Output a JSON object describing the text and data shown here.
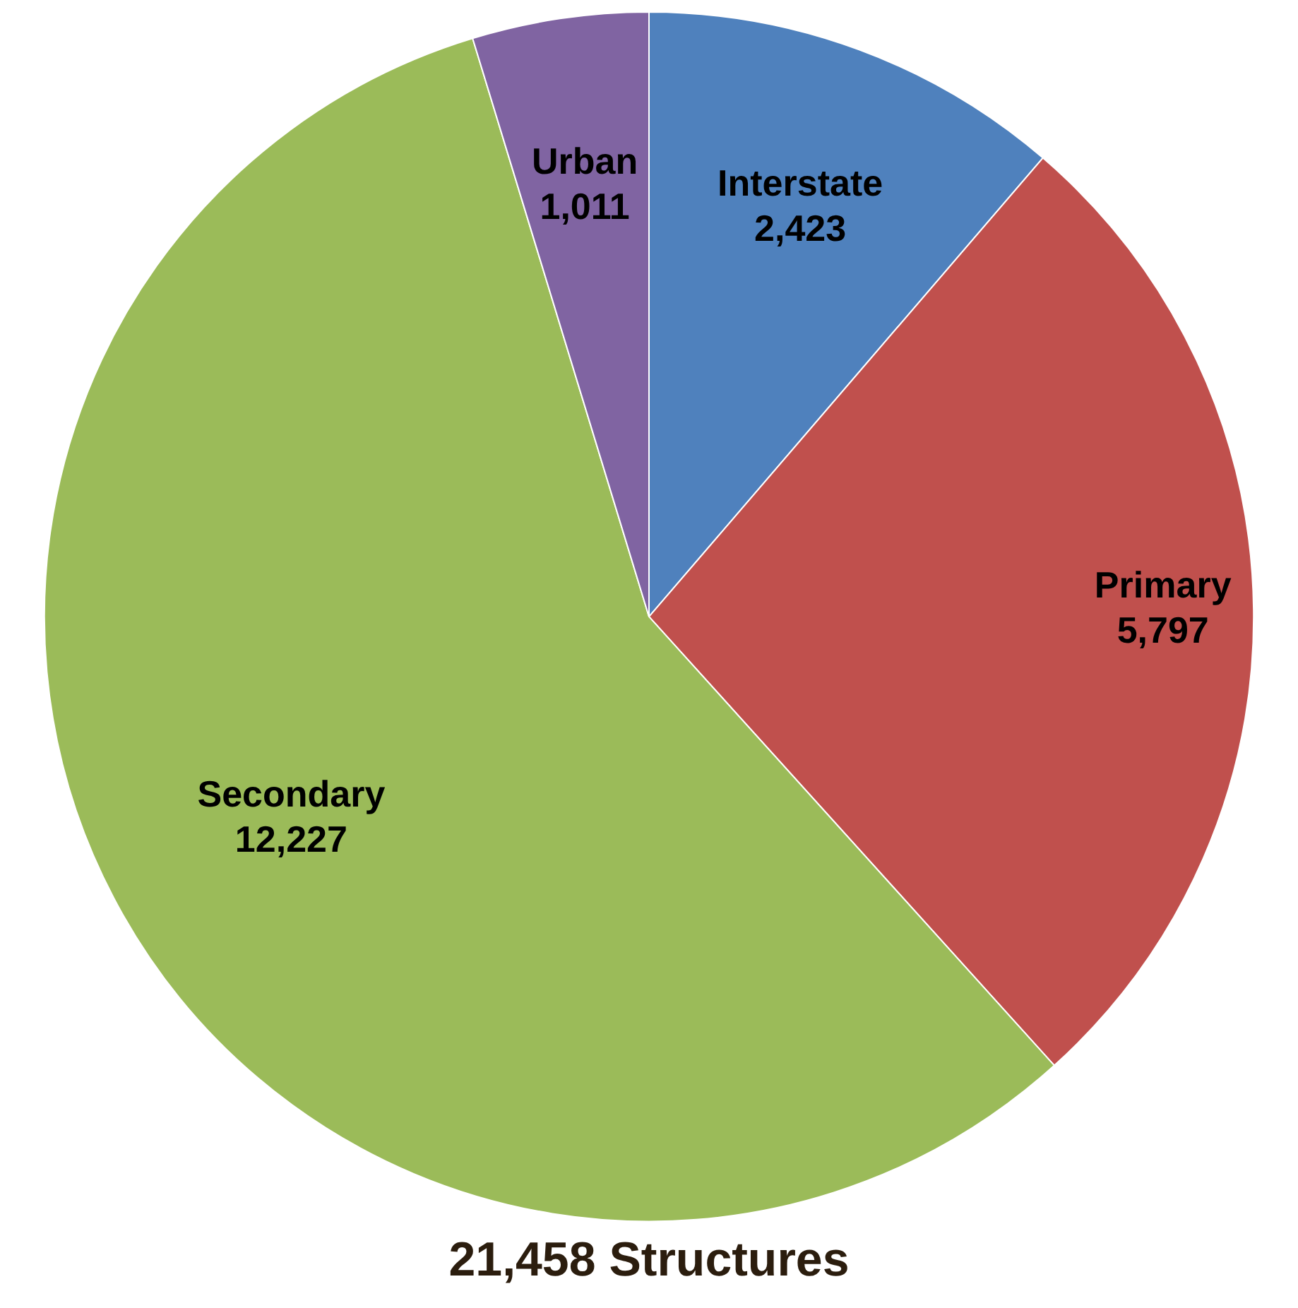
{
  "chart_data": {
    "type": "pie",
    "title": "21,458 Structures",
    "categories": [
      "Interstate",
      "Primary",
      "Secondary",
      "Urban"
    ],
    "values": [
      2423,
      5797,
      12227,
      1011
    ],
    "colors": [
      "#4f81bd",
      "#c0504d",
      "#9bbb59",
      "#8064a2"
    ],
    "value_labels": [
      "2,423",
      "5,797",
      "12,227",
      "1,011"
    ],
    "legend": false
  }
}
